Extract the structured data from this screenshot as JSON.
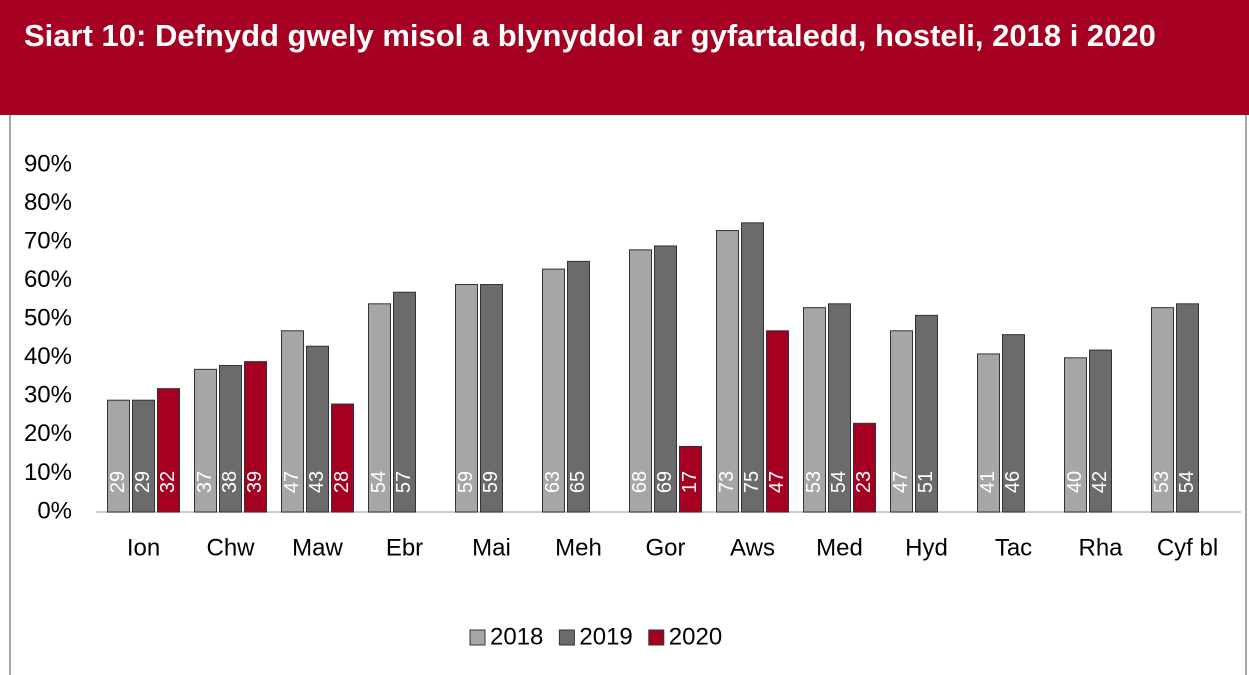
{
  "chart_data": {
    "type": "bar",
    "title": "Siart 10: Defnydd gwely misol a blynyddol ar gyfartaledd, hosteli, 2018 i 2020",
    "categories": [
      "Ion",
      "Chw",
      "Maw",
      "Ebr",
      "Mai",
      "Meh",
      "Gor",
      "Aws",
      "Med",
      "Hyd",
      "Tac",
      "Rha",
      "Cyf bl"
    ],
    "series": [
      {
        "name": "2018",
        "color": "#a6a6a6",
        "values": [
          29,
          37,
          47,
          54,
          59,
          63,
          68,
          73,
          53,
          47,
          41,
          40,
          53
        ]
      },
      {
        "name": "2019",
        "color": "#6b6b6b",
        "values": [
          29,
          38,
          43,
          57,
          59,
          65,
          69,
          75,
          54,
          51,
          46,
          42,
          54
        ]
      },
      {
        "name": "2020",
        "color": "#a50021",
        "values": [
          32,
          39,
          28,
          null,
          null,
          null,
          17,
          47,
          23,
          null,
          null,
          null,
          null
        ]
      }
    ],
    "ylim": [
      0,
      90
    ],
    "yticks": [
      {
        "value": 0,
        "label": "0%"
      },
      {
        "value": 10,
        "label": "10%"
      },
      {
        "value": 20,
        "label": "20%"
      },
      {
        "value": 30,
        "label": "30%"
      },
      {
        "value": 40,
        "label": "40%"
      },
      {
        "value": 50,
        "label": "50%"
      },
      {
        "value": 60,
        "label": "60%"
      },
      {
        "value": 70,
        "label": "70%"
      },
      {
        "value": 80,
        "label": "80%"
      },
      {
        "value": 90,
        "label": "90%"
      }
    ],
    "legend": "bottom"
  }
}
